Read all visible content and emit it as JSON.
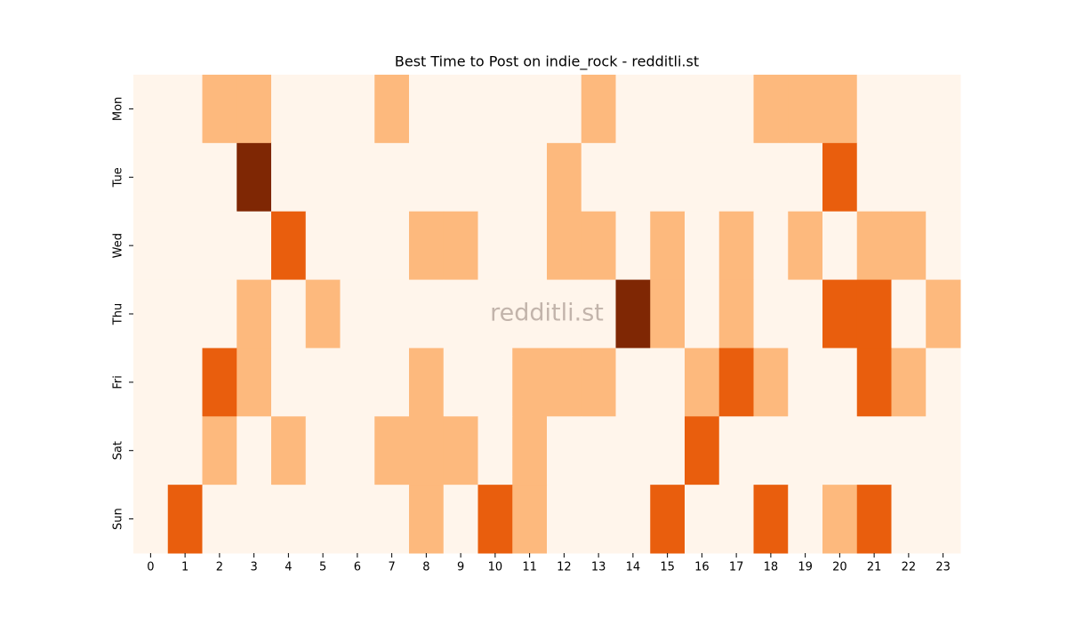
{
  "chart_data": {
    "type": "heatmap",
    "title": "Best Time to Post on indie_rock - redditli.st",
    "watermark": "redditli.st",
    "x": [
      "0",
      "1",
      "2",
      "3",
      "4",
      "5",
      "6",
      "7",
      "8",
      "9",
      "10",
      "11",
      "12",
      "13",
      "14",
      "15",
      "16",
      "17",
      "18",
      "19",
      "20",
      "21",
      "22",
      "23"
    ],
    "categories": [
      "Mon",
      "Tue",
      "Wed",
      "Thu",
      "Fri",
      "Sat",
      "Sun"
    ],
    "values": [
      [
        0,
        0,
        1,
        1,
        0,
        0,
        0,
        1,
        0,
        0,
        0,
        0,
        0,
        1,
        0,
        0,
        0,
        0,
        1,
        1,
        1,
        0,
        0,
        0
      ],
      [
        0,
        0,
        0,
        3,
        0,
        0,
        0,
        0,
        0,
        0,
        0,
        0,
        1,
        0,
        0,
        0,
        0,
        0,
        0,
        0,
        2,
        0,
        0,
        0
      ],
      [
        0,
        0,
        0,
        0,
        2,
        0,
        0,
        0,
        1,
        1,
        0,
        0,
        1,
        1,
        0,
        1,
        0,
        1,
        0,
        1,
        0,
        1,
        1,
        0
      ],
      [
        0,
        0,
        0,
        1,
        0,
        1,
        0,
        0,
        0,
        0,
        0,
        0,
        0,
        0,
        3,
        1,
        0,
        1,
        0,
        0,
        2,
        2,
        0,
        1
      ],
      [
        0,
        0,
        2,
        1,
        0,
        0,
        0,
        0,
        1,
        0,
        0,
        1,
        1,
        1,
        0,
        0,
        1,
        2,
        1,
        0,
        0,
        2,
        1,
        0
      ],
      [
        0,
        0,
        1,
        0,
        1,
        0,
        0,
        1,
        1,
        1,
        0,
        1,
        0,
        0,
        0,
        0,
        2,
        0,
        0,
        0,
        0,
        0,
        0,
        0
      ],
      [
        0,
        2,
        0,
        0,
        0,
        0,
        0,
        0,
        1,
        0,
        2,
        1,
        0,
        0,
        0,
        2,
        0,
        0,
        2,
        0,
        1,
        2,
        0,
        0
      ]
    ],
    "colors": [
      "#fff5eb",
      "#fdb97d",
      "#e95e0d",
      "#7f2704"
    ]
  }
}
